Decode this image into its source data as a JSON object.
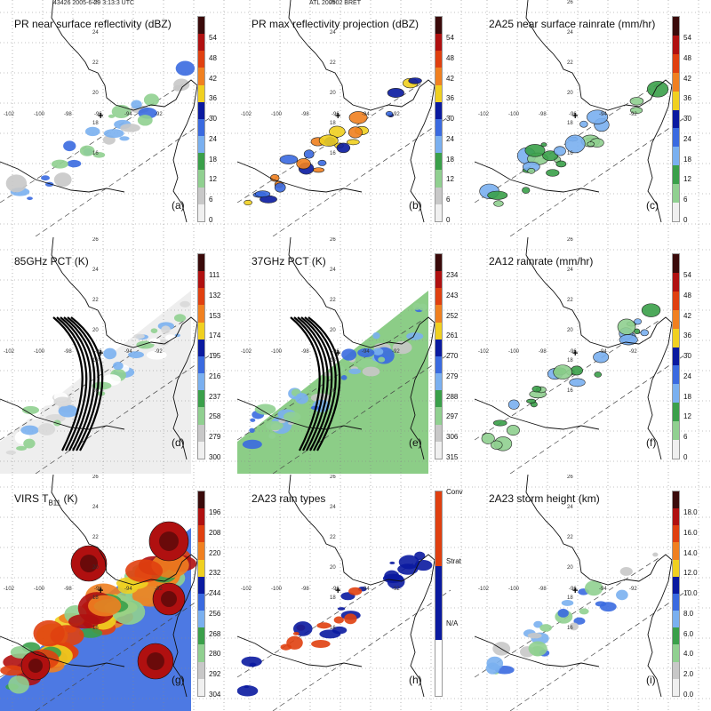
{
  "header": {
    "left": "43426 2005-6-29 3:13:3 UTC",
    "center": "ATL 200502 BRET"
  },
  "map_labels": {
    "lons": [
      "-102",
      "-100",
      "-98",
      "-96",
      "-94",
      "-92"
    ],
    "lats": [
      "26",
      "24",
      "22",
      "20",
      "18",
      "16"
    ]
  },
  "panels": [
    {
      "id": "a",
      "title": "PR near surface reflectivity (dBZ)",
      "label": "(a)",
      "bg": "#ffffff",
      "colors": [
        "#3a0a0a",
        "#b01010",
        "#e04010",
        "#f08020",
        "#f0d020",
        "#0a1aa0",
        "#3a6ae0",
        "#7ab0f0",
        "#3aa04a",
        "#90d090",
        "#c8c8c8",
        "#f0f0f0"
      ],
      "ticks": [
        "54",
        "48",
        "42",
        "36",
        "30",
        "24",
        "18",
        "12",
        "6",
        "0"
      ]
    },
    {
      "id": "b",
      "title": "PR max reflectivity projection (dBZ)",
      "label": "(b)",
      "bg": "#ffffff",
      "colors": [
        "#3a0a0a",
        "#b01010",
        "#e04010",
        "#f08020",
        "#f0d020",
        "#0a1aa0",
        "#3a6ae0",
        "#7ab0f0",
        "#3aa04a",
        "#90d090",
        "#c8c8c8",
        "#f0f0f0"
      ],
      "ticks": [
        "54",
        "48",
        "42",
        "36",
        "30",
        "24",
        "18",
        "12",
        "6",
        "0"
      ]
    },
    {
      "id": "c",
      "title": "2A25 near surface rainrate (mm/hr)",
      "label": "(c)",
      "bg": "#ffffff",
      "colors": [
        "#3a0a0a",
        "#b01010",
        "#e04010",
        "#f08020",
        "#f0d020",
        "#0a1aa0",
        "#3a6ae0",
        "#7ab0f0",
        "#3aa04a",
        "#90d090",
        "#f0f0f0"
      ],
      "ticks": [
        "54",
        "48",
        "42",
        "36",
        "30",
        "24",
        "18",
        "12",
        "6",
        "0"
      ]
    },
    {
      "id": "d",
      "title": "85GHz PCT (K)",
      "label": "(d)",
      "bg": "#f4f4f4",
      "colors": [
        "#3a0a0a",
        "#b01010",
        "#e04010",
        "#f08020",
        "#f0d020",
        "#0a1aa0",
        "#3a6ae0",
        "#7ab0f0",
        "#3aa04a",
        "#90d090",
        "#c8c8c8",
        "#f0f0f0"
      ],
      "ticks": [
        "111",
        "132",
        "153",
        "174",
        "195",
        "216",
        "237",
        "258",
        "279",
        "300"
      ]
    },
    {
      "id": "e",
      "title": "37GHz PCT (K)",
      "label": "(e)",
      "bg": "#ffffff",
      "colors": [
        "#3a0a0a",
        "#b01010",
        "#e04010",
        "#f08020",
        "#f0d020",
        "#0a1aa0",
        "#3a6ae0",
        "#7ab0f0",
        "#3aa04a",
        "#90d090",
        "#c8c8c8",
        "#f0f0f0"
      ],
      "ticks": [
        "234",
        "243",
        "252",
        "261",
        "270",
        "279",
        "288",
        "297",
        "306",
        "315"
      ]
    },
    {
      "id": "f",
      "title": "2A12 rainrate (mm/hr)",
      "label": "(f)",
      "bg": "#ffffff",
      "colors": [
        "#3a0a0a",
        "#b01010",
        "#e04010",
        "#f08020",
        "#f0d020",
        "#0a1aa0",
        "#3a6ae0",
        "#7ab0f0",
        "#3aa04a",
        "#90d090",
        "#f0f0f0"
      ],
      "ticks": [
        "54",
        "48",
        "42",
        "36",
        "30",
        "24",
        "18",
        "12",
        "6",
        "0"
      ]
    },
    {
      "id": "g",
      "title": "VIRS T",
      "title_sub": "B11",
      "title_tail": " (K)",
      "label": "(g)",
      "bg": "#ffffff",
      "colors": [
        "#3a0a0a",
        "#b01010",
        "#e04010",
        "#f08020",
        "#f0d020",
        "#0a1aa0",
        "#3a6ae0",
        "#7ab0f0",
        "#3aa04a",
        "#90d090",
        "#c8c8c8",
        "#f0f0f0"
      ],
      "ticks": [
        "196",
        "208",
        "220",
        "232",
        "244",
        "256",
        "268",
        "280",
        "292",
        "304"
      ]
    },
    {
      "id": "h",
      "title": "2A23 rain types",
      "label": "(h)",
      "bg": "#ffffff",
      "colors": [
        "#e04010",
        "#e04010",
        "#e04010",
        "#e04010",
        "#0a1aa0",
        "#0a1aa0",
        "#0a1aa0",
        "#0a1aa0",
        "#ffffff",
        "#ffffff",
        "#ffffff"
      ],
      "ticks": [
        "Conv",
        "Strat",
        "N/A"
      ]
    },
    {
      "id": "i",
      "title": "2A23 storm height (km)",
      "label": "(i)",
      "bg": "#ffffff",
      "colors": [
        "#3a0a0a",
        "#b01010",
        "#e04010",
        "#f08020",
        "#f0d020",
        "#0a1aa0",
        "#3a6ae0",
        "#7ab0f0",
        "#3aa04a",
        "#90d090",
        "#c8c8c8",
        "#f0f0f0"
      ],
      "ticks": [
        "18.0",
        "16.0",
        "14.0",
        "12.0",
        "10.0",
        "8.0",
        "6.0",
        "4.0",
        "2.0",
        "0.0"
      ]
    }
  ]
}
